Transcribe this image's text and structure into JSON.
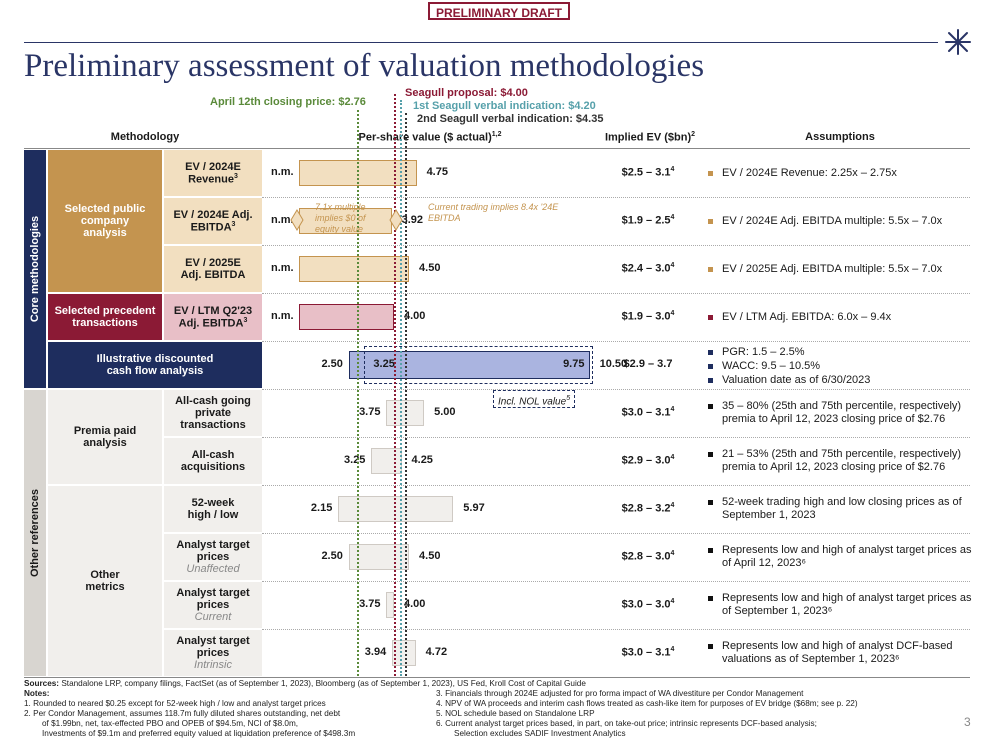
{
  "banner": "PRELIMINARY DRAFT",
  "title": "Preliminary assessment of valuation methodologies",
  "page_number": "3",
  "reference_lines": {
    "closing_price": "April 12th closing price: $2.76",
    "proposal": "Seagull proposal: $4.00",
    "first_indication": "1st Seagull verbal indication: $4.20",
    "second_indication": "2nd Seagull verbal indication: $4.35"
  },
  "headers": {
    "methodology": "Methodology",
    "per_share": "Per-share value ($ actual)",
    "per_share_note": "1,2",
    "implied_ev": "Implied EV ($bn)",
    "implied_ev_note": "2",
    "assumptions": "Assumptions"
  },
  "groups": {
    "core": "Core methodologies",
    "other": "Other references",
    "public_comps": "Selected public company analysis",
    "precedent": "Selected precedent transactions",
    "dcf": "Illustrative discounted cash flow analysis",
    "premia": "Premia paid analysis",
    "other_metrics": "Other metrics"
  },
  "annotations": {
    "multiple_note": "7.1x multiple implies $0 of equity value",
    "current_trading_note": "Current trading implies 8.4x '24E EBITDA",
    "nol_note": "Incl. NOL value",
    "nol_note_ref": "5",
    "nol_high": "9.75"
  },
  "rows": [
    {
      "label": "EV / 2024E Revenue",
      "label_note": "3",
      "sub": "",
      "low_label": "n.m.",
      "high_label": "4.75",
      "ev": "$2.5 – 3.1",
      "ev_note": "4",
      "assumptions": [
        "EV / 2024E Revenue: 2.25x – 2.75x"
      ]
    },
    {
      "label": "EV / 2024E Adj. EBITDA",
      "label_note": "3",
      "sub": "",
      "low_label": "n.m.",
      "high_label": "3.92",
      "ev": "$1.9 – 2.5",
      "ev_note": "4",
      "assumptions": [
        "EV / 2024E Adj. EBITDA multiple: 5.5x – 7.0x"
      ]
    },
    {
      "label": "EV / 2025E Adj. EBITDA",
      "label_note": "",
      "sub": "",
      "low_label": "n.m.",
      "high_label": "4.50",
      "ev": "$2.4 – 3.0",
      "ev_note": "4",
      "assumptions": [
        "EV / 2025E Adj. EBITDA multiple: 5.5x – 7.0x"
      ]
    },
    {
      "label": "EV / LTM Q2'23 Adj. EBITDA",
      "label_note": "3",
      "sub": "",
      "low_label": "n.m.",
      "high_label": "4.00",
      "ev": "$1.9 – 3.0",
      "ev_note": "4",
      "assumptions": [
        "EV / LTM Adj. EBITDA: 6.0x – 9.4x"
      ]
    },
    {
      "label": "",
      "label_note": "",
      "sub": "",
      "low_label": "2.50",
      "high_label": "10.50",
      "ev": "$2.9 – 3.7",
      "ev_note": "",
      "assumptions": [
        "PGR: 1.5 – 2.5%",
        "WACC: 9.5 – 10.5%",
        "Valuation date as of 6/30/2023"
      ],
      "inner_low": "3.25"
    },
    {
      "label": "All-cash going private transactions",
      "label_note": "",
      "sub": "",
      "low_label": "3.75",
      "high_label": "5.00",
      "ev": "$3.0 – 3.1",
      "ev_note": "4",
      "assumptions": [
        "35 – 80% (25th and 75th percentile, respectively) premia to April 12, 2023 closing price of $2.76"
      ]
    },
    {
      "label": "All-cash acquisitions",
      "label_note": "",
      "sub": "",
      "low_label": "3.25",
      "high_label": "4.25",
      "ev": "$2.9 – 3.0",
      "ev_note": "4",
      "assumptions": [
        "21 – 53% (25th and 75th percentile, respectively) premia to April 12, 2023 closing price of $2.76"
      ]
    },
    {
      "label": "52-week high / low",
      "label_note": "",
      "sub": "",
      "low_label": "2.15",
      "high_label": "5.97",
      "ev": "$2.8 – 3.2",
      "ev_note": "4",
      "assumptions": [
        "52-week trading high and low closing prices as of September 1, 2023"
      ]
    },
    {
      "label": "Analyst target prices",
      "label_note": "",
      "sub": "Unaffected",
      "low_label": "2.50",
      "high_label": "4.50",
      "ev": "$2.8 – 3.0",
      "ev_note": "4",
      "assumptions": [
        "Represents low and high of analyst target prices as of April 12, 2023⁶"
      ]
    },
    {
      "label": "Analyst target prices",
      "label_note": "",
      "sub": "Current",
      "low_label": "3.75",
      "high_label": "4.00",
      "ev": "$3.0 – 3.0",
      "ev_note": "4",
      "assumptions": [
        "Represents low and high of analyst target prices as of September 1, 2023⁶"
      ]
    },
    {
      "label": "Analyst target prices",
      "label_note": "",
      "sub": "Intrinsic",
      "low_label": "3.94",
      "high_label": "4.72",
      "ev": "$3.0 – 3.1",
      "ev_note": "4",
      "assumptions": [
        "Represents low and high of analyst DCF-based valuations as of September 1, 2023⁶"
      ]
    }
  ],
  "chart_data": {
    "type": "bar",
    "orientation": "horizontal floating range",
    "title": "Per-share value ($ actual)",
    "xlabel": "Per-share value ($)",
    "xlim": [
      0,
      11
    ],
    "categories": [
      "EV / 2024E Revenue",
      "EV / 2024E Adj. EBITDA",
      "EV / 2025E Adj. EBITDA",
      "EV / LTM Q2'23 Adj. EBITDA",
      "Illustrative DCF",
      "Premia: All-cash going private",
      "Premia: All-cash acquisitions",
      "52-week high / low",
      "Analyst target prices (Unaffected)",
      "Analyst target prices (Current)",
      "Analyst target prices (Intrinsic)"
    ],
    "series": [
      {
        "name": "low",
        "values": [
          0,
          0,
          0,
          0,
          2.5,
          3.75,
          3.25,
          2.15,
          2.5,
          3.75,
          3.94
        ]
      },
      {
        "name": "high",
        "values": [
          4.75,
          3.92,
          4.5,
          4.0,
          10.5,
          5.0,
          4.25,
          5.97,
          4.5,
          4.0,
          4.72
        ]
      }
    ],
    "dcf_without_nol": [
      3.25,
      9.75
    ],
    "reference_values": {
      "closing_price": 2.76,
      "proposal": 4.0,
      "first_indication": 4.2,
      "second_indication": 4.35
    },
    "colors": {
      "public_comps": "#f2dfc0",
      "precedent": "#e8bfc7",
      "dcf": "#aab4e0",
      "other": "#f1efec",
      "closing_line": "#5a8a3a",
      "proposal_line": "#8b1a35",
      "first_line": "#56a0aa",
      "second_line": "#333333"
    }
  },
  "footnotes": {
    "sources_label": "Sources:",
    "sources": "Standalone LRP, company filings, FactSet (as of September 1, 2023), Bloomberg (as of September 1, 2023), US Fed, Kroll Cost of Capital Guide",
    "notes_label": "Notes:",
    "left": [
      "1.   Rounded to neared $0.25 except for 52-week high / low and analyst target prices",
      "2.   Per Condor Management, assumes 118.7m fully diluted shares outstanding, net debt",
      "of $1.99bn, net, tax-effected PBO and OPEB of $94.5m, NCI of $8.0m,",
      "Investments of $9.1m and preferred equity valued at liquidation preference of $498.3m"
    ],
    "right": [
      "3.   Financials through 2024E adjusted for pro forma impact of WA divestiture per Condor Management",
      "4.   NPV of WA proceeds and interim cash flows treated as cash-like item for purposes of EV bridge ($68m; see p. 22)",
      "5.   NOL schedule based on Standalone LRP",
      "6.   Current analyst target prices based, in part, on take-out price; intrinsic represents DCF-based analysis;",
      "Selection excludes SADIF Investment Analytics"
    ]
  }
}
